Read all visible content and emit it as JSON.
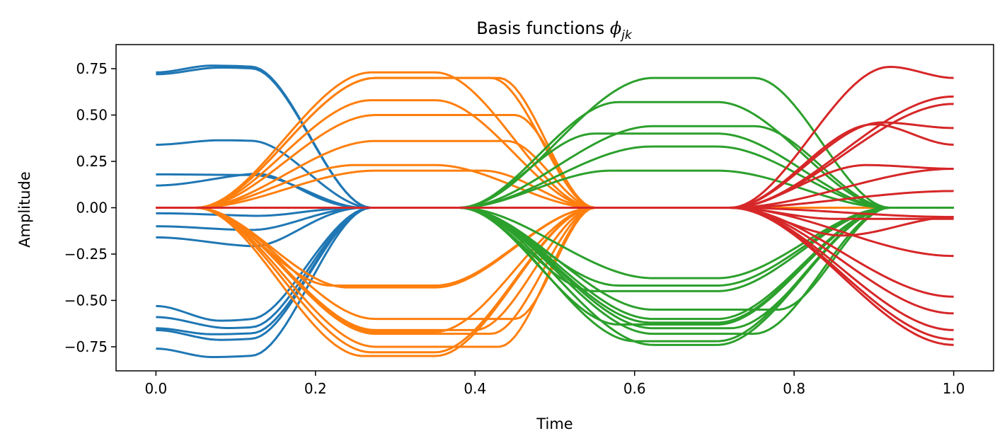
{
  "chart_data": {
    "type": "line",
    "title_main": "Basis functions ",
    "title_symbol": "ϕ",
    "title_subscript": "jk",
    "xlabel": "Time",
    "ylabel": "Amplitude",
    "xlim": [
      -0.05,
      1.05
    ],
    "ylim": [
      -0.88,
      0.88
    ],
    "xticks": [
      0.0,
      0.2,
      0.4,
      0.6,
      0.8,
      1.0
    ],
    "xtick_labels": [
      "0.0",
      "0.2",
      "0.4",
      "0.6",
      "0.8",
      "1.0"
    ],
    "yticks": [
      0.75,
      0.5,
      0.25,
      0.0,
      -0.25,
      -0.5,
      -0.75
    ],
    "ytick_labels": [
      "0.75",
      "0.50",
      "0.25",
      "0.00",
      "−0.25",
      "−0.50",
      "−0.75"
    ],
    "grid": false,
    "segments": [
      {
        "color": "#1f77b4",
        "domain": [
          0.0,
          0.3
        ],
        "weights": [
          0.73,
          0.72,
          0.34,
          0.18,
          0.12,
          -0.03,
          -0.1,
          -0.16,
          -0.53,
          -0.59,
          -0.65,
          -0.66,
          -0.76
        ],
        "peak_scale": [
          1.05,
          1.05,
          1.07,
          0.98,
          1.55,
          1.5,
          1.2,
          1.3,
          1.15,
          1.1,
          1.05,
          1.08,
          1.06
        ],
        "peak_pos": [
          0.07,
          0.08,
          0.08,
          0.12,
          0.14,
          0.15,
          0.12,
          0.13,
          0.08,
          0.09,
          0.07,
          0.08,
          0.07
        ],
        "zero_at": [
          0.27,
          0.27,
          0.27,
          0.26,
          0.26,
          0.26,
          0.26,
          0.26,
          0.27,
          0.27,
          0.27,
          0.27,
          0.27
        ]
      },
      {
        "color": "#ff7f0e",
        "domain": [
          0.05,
          0.55
        ],
        "weights": [
          0.73,
          0.7,
          0.7,
          0.58,
          0.5,
          0.36,
          0.23,
          0.2,
          -0.42,
          -0.43,
          -0.6,
          -0.66,
          -0.67,
          -0.68,
          -0.75,
          -0.78,
          -0.8
        ],
        "peak_pos": [
          0.27,
          0.43,
          0.42,
          0.27,
          0.45,
          0.44,
          0.25,
          0.41,
          0.22,
          0.24,
          0.45,
          0.4,
          0.28,
          0.42,
          0.43,
          0.27,
          0.26
        ]
      },
      {
        "color": "#2ca02c",
        "domain": [
          0.38,
          0.92
        ],
        "weights": [
          0.7,
          0.57,
          0.44,
          0.4,
          0.33,
          0.2,
          -0.38,
          -0.42,
          -0.45,
          -0.55,
          -0.6,
          -0.62,
          -0.63,
          -0.65,
          -0.68,
          -0.72,
          -0.74
        ],
        "peak_pos": [
          0.75,
          0.58,
          0.75,
          0.55,
          0.62,
          0.57,
          0.63,
          0.58,
          0.55,
          0.78,
          0.65,
          0.62,
          0.58,
          0.72,
          0.75,
          0.6,
          0.7
        ]
      },
      {
        "color": "#d62728",
        "domain": [
          0.7,
          1.0
        ],
        "weights": [
          0.76,
          0.6,
          0.56,
          0.46,
          0.45,
          0.23,
          0.21,
          0.09,
          -0.05,
          -0.06,
          -0.15,
          -0.26,
          -0.48,
          -0.57,
          -0.66,
          -0.71,
          -0.74
        ],
        "end_values": [
          0.7,
          0.6,
          0.56,
          0.43,
          0.34,
          0.21,
          0.21,
          0.09,
          -0.05,
          -0.06,
          -0.05,
          -0.26,
          -0.48,
          -0.57,
          -0.66,
          -0.71,
          -0.74
        ],
        "peak_pos": [
          0.92,
          1.0,
          1.0,
          0.91,
          0.9,
          0.89,
          1.0,
          1.0,
          1.0,
          0.85,
          0.86,
          1.0,
          1.0,
          1.0,
          1.0,
          1.0,
          1.0
        ]
      }
    ]
  }
}
